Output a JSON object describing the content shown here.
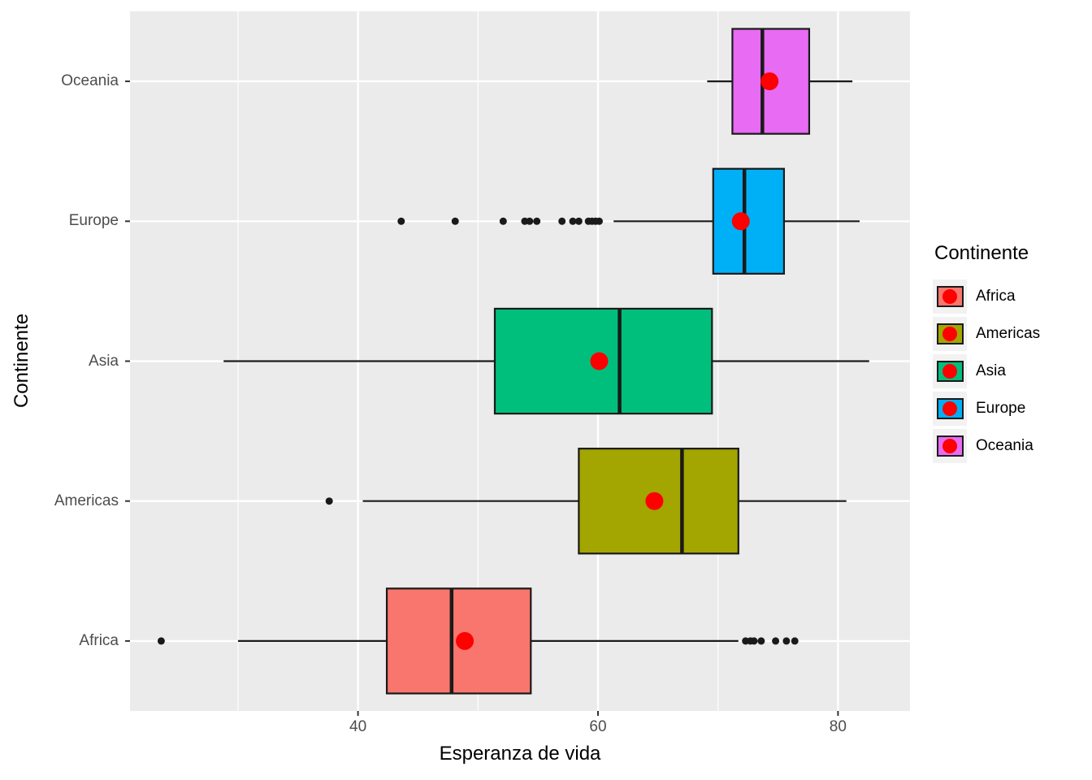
{
  "axes": {
    "note": "horizontal boxplots of life expectancy by continent, ggplot2 style"
  },
  "chart_data": {
    "type": "boxplot",
    "orientation": "horizontal",
    "title": "",
    "xlabel": "Esperanza de vida",
    "ylabel": "Continente",
    "legend_title": "Continente",
    "legend_position": "right",
    "grid": true,
    "xlim": [
      21,
      86
    ],
    "x_ticks": [
      40,
      60,
      80
    ],
    "x_minor_ticks": [
      30,
      50,
      70
    ],
    "categories_top_to_bottom": [
      "Oceania",
      "Europe",
      "Asia",
      "Americas",
      "Africa"
    ],
    "legend_entries": [
      "Africa",
      "Americas",
      "Asia",
      "Europe",
      "Oceania"
    ],
    "series": [
      {
        "name": "Oceania",
        "color": "#E76BF3",
        "whisker_low": 69.1,
        "q1": 71.2,
        "median": 73.7,
        "q3": 77.6,
        "whisker_high": 81.2,
        "mean": 74.3,
        "outliers": []
      },
      {
        "name": "Europe",
        "color": "#00B0F6",
        "whisker_low": 61.3,
        "q1": 69.6,
        "median": 72.2,
        "q3": 75.5,
        "whisker_high": 81.8,
        "mean": 71.9,
        "outliers": [
          43.6,
          48.1,
          52.1,
          53.9,
          54.3,
          54.9,
          57.0,
          57.9,
          58.4,
          59.2,
          59.5,
          59.8,
          60.1
        ]
      },
      {
        "name": "Asia",
        "color": "#00BF7D",
        "whisker_low": 28.8,
        "q1": 51.4,
        "median": 61.8,
        "q3": 69.5,
        "whisker_high": 82.6,
        "mean": 60.1,
        "outliers": []
      },
      {
        "name": "Americas",
        "color": "#A3A500",
        "whisker_low": 40.4,
        "q1": 58.4,
        "median": 67.0,
        "q3": 71.7,
        "whisker_high": 80.7,
        "mean": 64.7,
        "outliers": [
          37.6
        ]
      },
      {
        "name": "Africa",
        "color": "#F8766D",
        "whisker_low": 30.0,
        "q1": 42.4,
        "median": 47.8,
        "q3": 54.4,
        "whisker_high": 71.7,
        "mean": 48.9,
        "outliers": [
          23.6,
          72.3,
          72.7,
          73.0,
          73.6,
          74.8,
          75.7,
          76.4
        ]
      }
    ],
    "colors": {
      "panel_bg": "#EBEBEB",
      "grid": "#FFFFFF",
      "outline": "#1A1A1A",
      "mean_point": "#FF0000",
      "axis_text": "#4D4D4D",
      "axis_tick": "#333333",
      "legend_key_bg": "#F2F2F2"
    }
  }
}
